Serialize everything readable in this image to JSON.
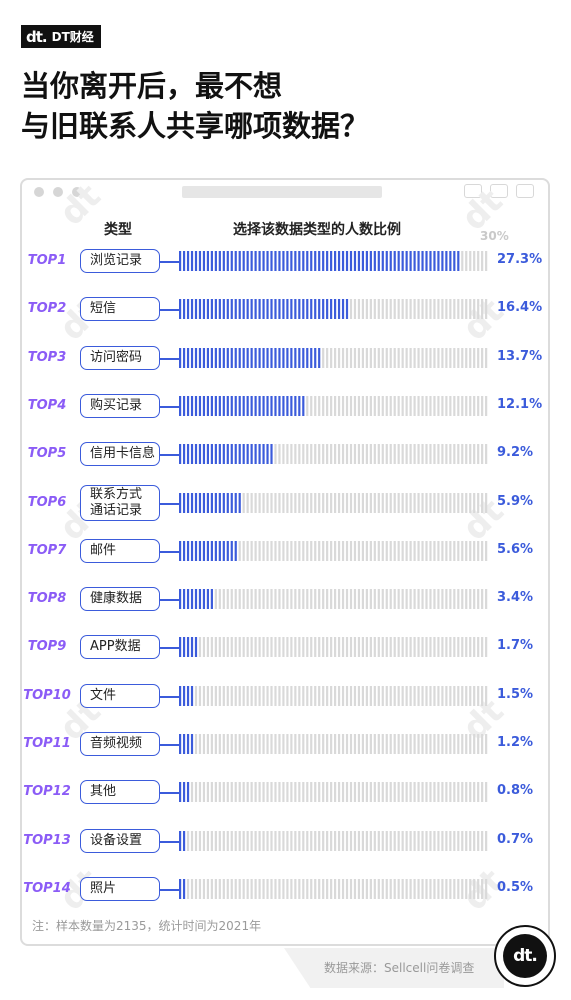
{
  "brand": {
    "logo_text": "DT财经",
    "logo_mark": "dt."
  },
  "title": {
    "line1": "当你离开后，最不想",
    "line2": "与旧联系人共享哪项数据？"
  },
  "table": {
    "col_type": "类型",
    "col_ratio": "选择该数据类型的人数比例",
    "max_label": "30%"
  },
  "chart_data": {
    "type": "bar",
    "orientation": "horizontal",
    "xlim": [
      0,
      30
    ],
    "unit": "%",
    "ranks": [
      "TOP1",
      "TOP2",
      "TOP3",
      "TOP4",
      "TOP5",
      "TOP6",
      "TOP7",
      "TOP8",
      "TOP9",
      "TOP10",
      "TOP11",
      "TOP12",
      "TOP13",
      "TOP14"
    ],
    "categories": [
      "浏览记录",
      "短信",
      "访问密码",
      "购买记录",
      "信用卡信息",
      "联系方式通话记录",
      "邮件",
      "健康数据",
      "APP数据",
      "文件",
      "音频视频",
      "其他",
      "设备设置",
      "照片"
    ],
    "category_lines": [
      [
        "浏览记录"
      ],
      [
        "短信"
      ],
      [
        "访问密码"
      ],
      [
        "购买记录"
      ],
      [
        "信用卡信息"
      ],
      [
        "联系方式",
        "通话记录"
      ],
      [
        "邮件"
      ],
      [
        "健康数据"
      ],
      [
        "APP数据"
      ],
      [
        "文件"
      ],
      [
        "音频视频"
      ],
      [
        "其他"
      ],
      [
        "设备设置"
      ],
      [
        "照片"
      ]
    ],
    "values": [
      27.3,
      16.4,
      13.7,
      12.1,
      9.2,
      5.9,
      5.6,
      3.4,
      1.7,
      1.5,
      1.2,
      0.8,
      0.7,
      0.5
    ],
    "value_labels": [
      "27.3%",
      "16.4%",
      "13.7%",
      "12.1%",
      "9.2%",
      "5.9%",
      "5.6%",
      "3.4%",
      "1.7%",
      "1.5%",
      "1.2%",
      "0.8%",
      "0.7%",
      "0.5%"
    ]
  },
  "colors": {
    "bar_fill": "#3b5bdb",
    "bar_track": "#d9d9d9",
    "rank": "#8b5cf6",
    "value": "#3b5bdb"
  },
  "note": "注：样本数量为2135，统计时间为2021年",
  "source": "数据来源：Sellcell问卷调查",
  "badge_text": "dt."
}
